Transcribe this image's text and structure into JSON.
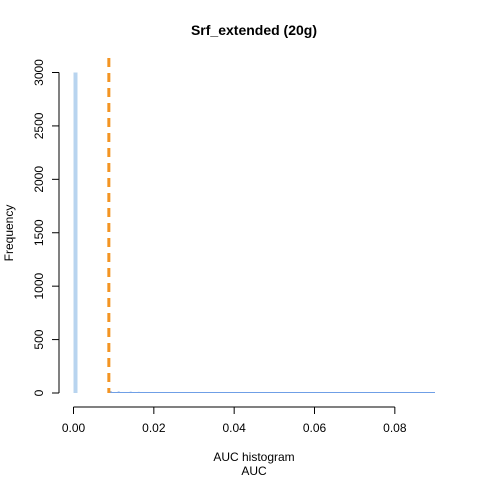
{
  "chart_data": {
    "type": "bar",
    "title": "Srf_extended (20g)",
    "xlabel_line1": "AUC histogram",
    "xlabel_line2": "AUC",
    "ylabel": "Frequency",
    "xlim": [
      0,
      0.09
    ],
    "ylim": [
      0,
      3000
    ],
    "x_ticks": [
      "0.00",
      "0.02",
      "0.04",
      "0.06",
      "0.08"
    ],
    "y_ticks": [
      "0",
      "500",
      "1000",
      "1500",
      "2000",
      "2500",
      "3000"
    ],
    "x_tick_values": [
      0,
      0.02,
      0.04,
      0.06,
      0.08
    ],
    "y_tick_values": [
      0,
      500,
      1000,
      1500,
      2000,
      2500,
      3000
    ],
    "bin_width": 0.0005,
    "bins": [
      {
        "x0": 0.0,
        "count": 3000
      },
      {
        "x0": 0.009,
        "count": 14
      },
      {
        "x0": 0.011,
        "count": 12
      },
      {
        "x0": 0.014,
        "count": 11
      },
      {
        "x0": 0.016,
        "count": 10
      },
      {
        "x0": 0.0185,
        "count": 9
      },
      {
        "x0": 0.021,
        "count": 8
      },
      {
        "x0": 0.024,
        "count": 9
      },
      {
        "x0": 0.028,
        "count": 6
      },
      {
        "x0": 0.032,
        "count": 5
      },
      {
        "x0": 0.037,
        "count": 4
      },
      {
        "x0": 0.042,
        "count": 4
      },
      {
        "x0": 0.047,
        "count": 3
      },
      {
        "x0": 0.052,
        "count": 2
      },
      {
        "x0": 0.06,
        "count": 2
      },
      {
        "x0": 0.07,
        "count": 1
      },
      {
        "x0": 0.08,
        "count": 1
      },
      {
        "x0": 0.088,
        "count": 1
      }
    ],
    "threshold": 0.0088,
    "colors": {
      "bars_low": "#b8d4ef",
      "bars_high": "#2f6fd6",
      "threshold": "#f39423",
      "axis": "#000000"
    }
  }
}
